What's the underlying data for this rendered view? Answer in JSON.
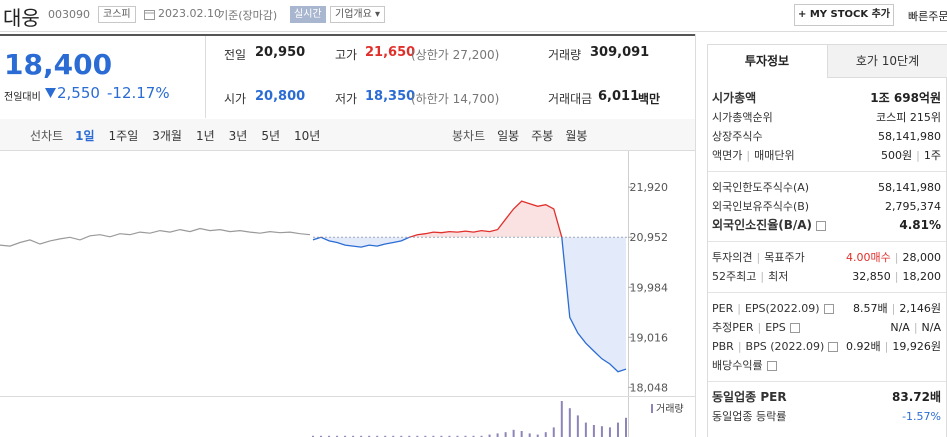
{
  "header": {
    "name": "대웅",
    "code": "003090",
    "market": "코스피",
    "date": "2023.02.10",
    "basis": "기준(장마감)",
    "realtime": "실시간",
    "overview": "기업개요",
    "mystock": "+ MY STOCK 추가",
    "quick_order": "빠른주문"
  },
  "quote": {
    "price": "18,400",
    "change_label": "전일대비",
    "change": "2,550",
    "change_pct": "-12.17%"
  },
  "summary": {
    "prev_close": {
      "label": "전일",
      "value": "20,950"
    },
    "high": {
      "label": "고가",
      "value": "21,650",
      "limit": "(상한가 27,200)"
    },
    "volume": {
      "label": "거래량",
      "value": "309,091"
    },
    "open": {
      "label": "시가",
      "value": "20,800"
    },
    "low": {
      "label": "저가",
      "value": "18,350",
      "limit": "(하한가 14,700)"
    },
    "amount": {
      "label": "거래대금",
      "value": "6,011",
      "unit": "백만"
    }
  },
  "chart_tabs": {
    "line": "선차트",
    "periods": [
      "1일",
      "1주일",
      "3개월",
      "1년",
      "3년",
      "5년",
      "10년"
    ],
    "candle": "봉차트",
    "candles": [
      "일봉",
      "주봉",
      "월봉"
    ]
  },
  "chart": {
    "type": "line",
    "ylim": [
      17900,
      22600
    ],
    "yticks": [
      {
        "value": 21920,
        "label": "21,920"
      },
      {
        "value": 20952,
        "label": "20,952"
      },
      {
        "value": 19984,
        "label": "19,984"
      },
      {
        "value": 19016,
        "label": "19,016"
      },
      {
        "value": 18048,
        "label": "18,048"
      }
    ],
    "reference": 20952,
    "prev_color": "#9a9a9a",
    "up_color": "#e0302c",
    "down_color": "#2b6cd4",
    "up_fill": "#fbe2e2",
    "down_fill": "#e3ebfa",
    "prev_values": [
      20800,
      20780,
      20850,
      20900,
      20820,
      20880,
      20920,
      20950,
      20900,
      20980,
      21000,
      20960,
      21020,
      21000,
      21050,
      21030,
      21080,
      21050,
      21100,
      21060,
      21120,
      21080,
      21100,
      21060,
      21080,
      21050,
      21030,
      21060,
      21040,
      21050,
      21020,
      21000
    ],
    "values": [
      20900,
      20950,
      20880,
      20850,
      20800,
      20780,
      20760,
      20800,
      20780,
      20820,
      20850,
      20880,
      20950,
      21000,
      21020,
      21050,
      21040,
      21060,
      21050,
      21070,
      21050,
      21080,
      21060,
      21100,
      21300,
      21500,
      21650,
      21600,
      21550,
      21580,
      21500,
      20950,
      19400,
      19100,
      18900,
      18750,
      18600,
      18500,
      18350,
      18400
    ],
    "volume_label": "거래량",
    "volume_color": "#8e84b8",
    "volume": [
      1,
      1,
      1,
      1,
      1,
      1,
      1,
      1,
      1,
      1,
      1,
      1,
      1,
      1,
      1,
      1,
      1,
      1,
      1,
      1,
      1,
      1,
      2,
      3,
      4,
      6,
      5,
      3,
      2,
      4,
      8,
      30,
      24,
      18,
      12,
      10,
      9,
      8,
      12,
      16
    ]
  },
  "info": {
    "tabs": [
      "투자정보",
      "호가 10단계"
    ],
    "groups": [
      [
        {
          "labels": [
            "시가총액"
          ],
          "values": [
            "1조 698억원"
          ],
          "strong": true
        },
        {
          "labels": [
            "시가총액순위"
          ],
          "values": [
            "코스피 215위"
          ]
        },
        {
          "labels": [
            "상장주식수"
          ],
          "values": [
            "58,141,980"
          ]
        },
        {
          "labels": [
            "액면가",
            "매매단위"
          ],
          "values": [
            "500원",
            "1주"
          ]
        }
      ],
      [
        {
          "labels": [
            "외국인한도주식수(A)"
          ],
          "values": [
            "58,141,980"
          ]
        },
        {
          "labels": [
            "외국인보유주식수(B)"
          ],
          "values": [
            "2,795,374"
          ]
        },
        {
          "labels": [
            "외국인소진율(B/A)"
          ],
          "values": [
            "4.81%"
          ],
          "strong": true,
          "help": true
        }
      ],
      [
        {
          "labels": [
            "투자의견",
            "목표주가"
          ],
          "values": [
            "4.00매수",
            "28,000"
          ],
          "accent": "#e0302c"
        },
        {
          "labels": [
            "52주최고",
            "최저"
          ],
          "values": [
            "32,850",
            "18,200"
          ]
        }
      ],
      [
        {
          "labels": [
            "PER",
            "EPS(2022.09)"
          ],
          "values": [
            "8.57배",
            "2,146원"
          ],
          "help": true
        },
        {
          "labels": [
            "추정PER",
            "EPS"
          ],
          "values": [
            "N/A",
            "N/A"
          ],
          "help": true
        },
        {
          "labels": [
            "PBR",
            "BPS (2022.09)"
          ],
          "values": [
            "0.92배",
            "19,926원"
          ],
          "help": true
        },
        {
          "labels": [
            "배당수익률"
          ],
          "values": [],
          "help": true
        }
      ],
      [
        {
          "labels": [
            "동일업종 PER"
          ],
          "values": [
            "83.72배"
          ],
          "strong": true
        },
        {
          "labels": [
            "동일업종 등락률"
          ],
          "values": [
            "-1.57%"
          ],
          "accent": "#2b6cd4"
        }
      ]
    ]
  }
}
